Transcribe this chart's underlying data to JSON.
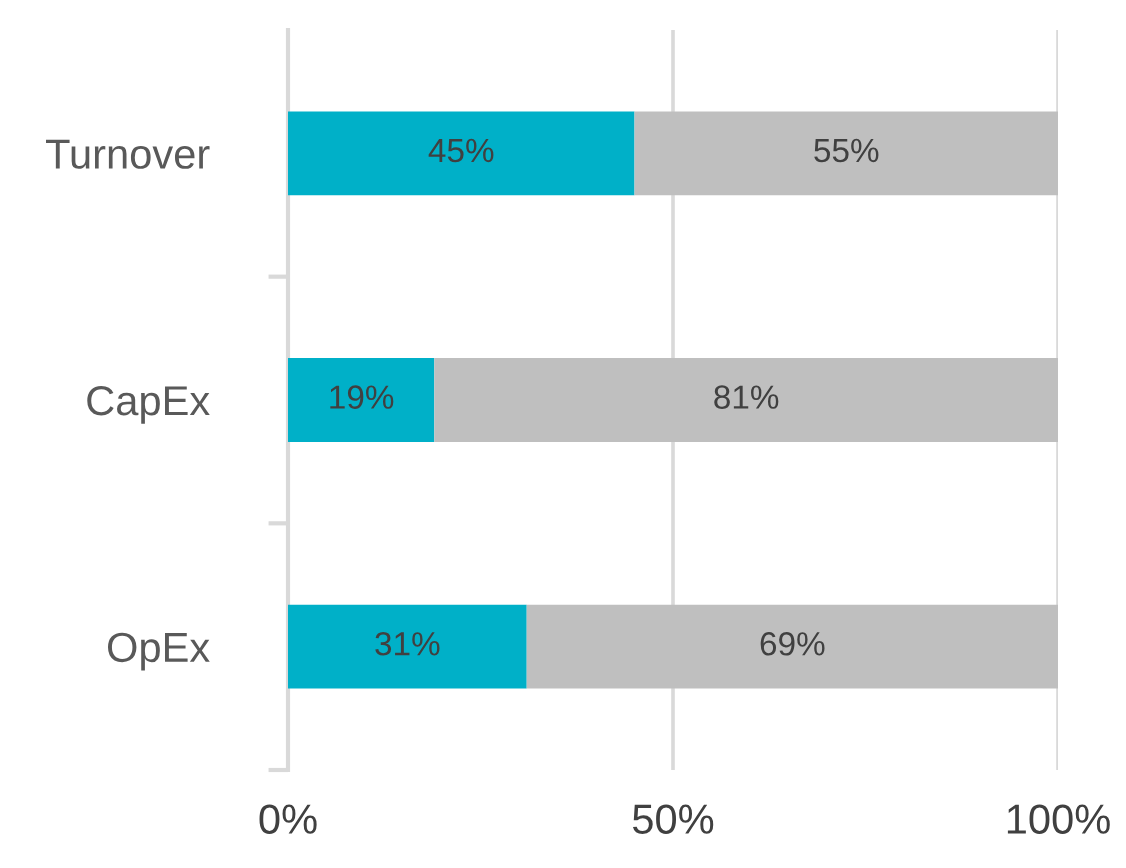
{
  "chart_data": {
    "type": "bar",
    "orientation": "horizontal",
    "stacked": true,
    "categories": [
      "Turnover",
      "CapEx",
      "OpEx"
    ],
    "series": [
      {
        "color": "#00b0c8",
        "values": [
          45,
          19,
          31
        ],
        "value_labels": [
          "45%",
          "19%",
          "31%"
        ]
      },
      {
        "color": "#bfbfbf",
        "values": [
          55,
          81,
          69
        ],
        "value_labels": [
          "55%",
          "81%",
          "69%"
        ]
      }
    ],
    "xlim": [
      0,
      100
    ],
    "xticks": [
      {
        "value": 0,
        "label": "0%"
      },
      {
        "value": 50,
        "label": "50%"
      },
      {
        "value": 100,
        "label": "100%"
      }
    ],
    "grid": "x",
    "legend": false
  }
}
